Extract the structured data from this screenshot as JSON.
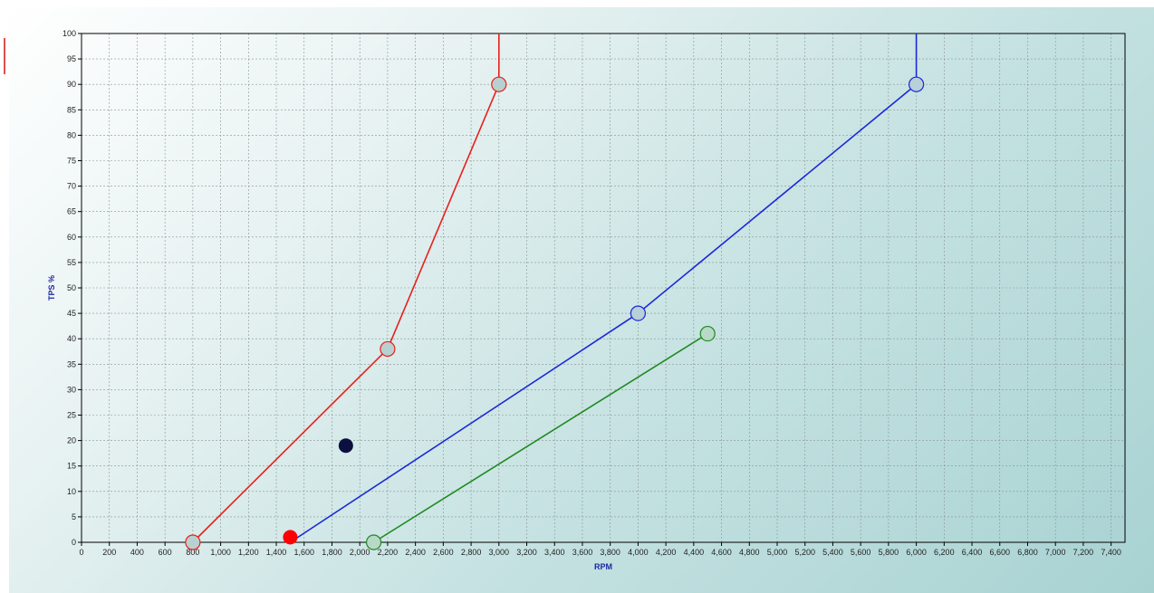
{
  "chart_data": {
    "type": "line",
    "title": "",
    "xlabel": "RPM",
    "ylabel": "TPS %",
    "xlim": [
      0,
      7500
    ],
    "ylim": [
      0,
      100
    ],
    "x_tick_step": 200,
    "x_tick_max": 7400,
    "y_tick_step": 5,
    "grid": true,
    "legend": "none",
    "series": [
      {
        "color": "#e8201a",
        "marker_fill": "#b8d0d0",
        "extends_to_top": true,
        "points": [
          [
            800,
            0
          ],
          [
            2200,
            38
          ],
          [
            3000,
            90
          ]
        ]
      },
      {
        "color": "#1a28d8",
        "marker_fill": "#b8d0d8",
        "extends_to_top": true,
        "points": [
          [
            1500,
            0
          ],
          [
            4000,
            45
          ],
          [
            6000,
            90
          ]
        ],
        "unmarked_point_indexes": [
          0
        ]
      },
      {
        "color": "#1e8a1e",
        "marker_fill": "#b8d8c8",
        "extends_to_top": false,
        "points": [
          [
            2100,
            0
          ],
          [
            4500,
            41
          ]
        ]
      }
    ],
    "markers": [
      {
        "x": 1900,
        "y": 19,
        "color": "#0c1040"
      },
      {
        "x": 1500,
        "y": 1,
        "color": "#ff0000"
      }
    ]
  }
}
